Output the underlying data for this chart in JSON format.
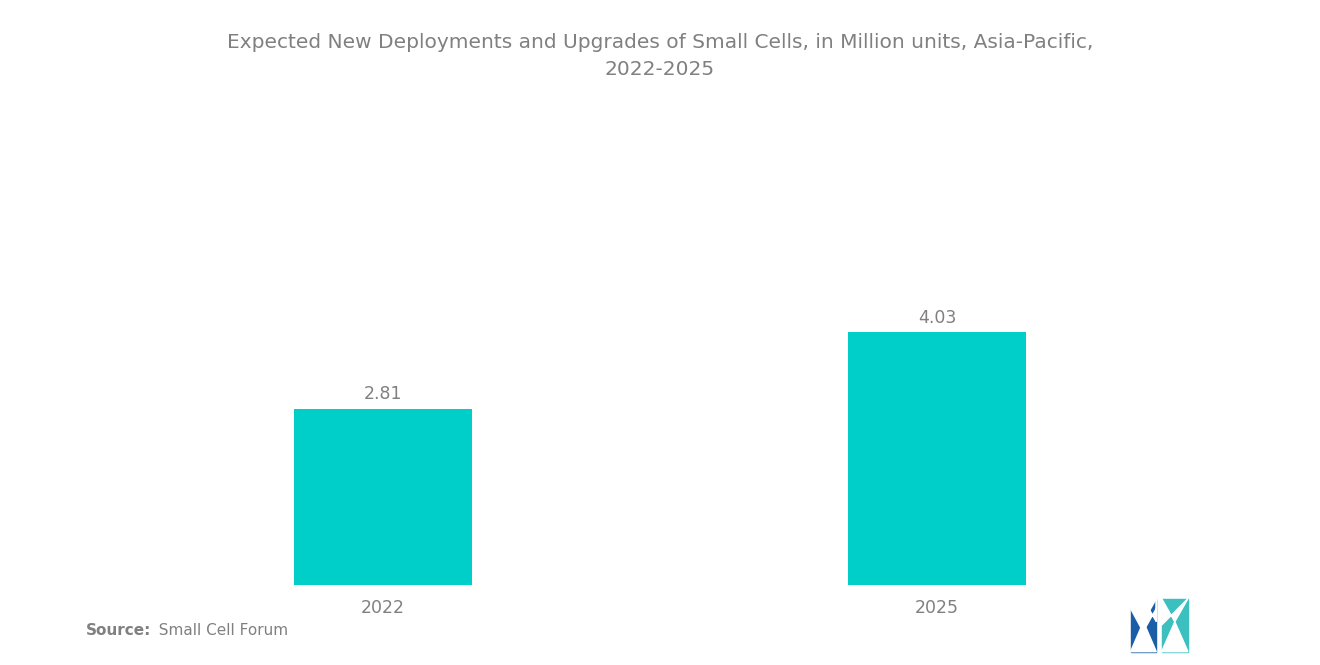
{
  "title": "Expected New Deployments and Upgrades of Small Cells, in Million units, Asia-Pacific,\n2022-2025",
  "categories": [
    "2022",
    "2025"
  ],
  "values": [
    2.81,
    4.03
  ],
  "bar_color": "#00CEC9",
  "bar_width": 0.32,
  "value_labels": [
    "2.81",
    "4.03"
  ],
  "source_bold": "Source:",
  "source_rest": "  Small Cell Forum",
  "title_fontsize": 14.5,
  "tick_fontsize": 12.5,
  "value_fontsize": 12.5,
  "source_fontsize": 11,
  "ylim": [
    0,
    5.5
  ],
  "background_color": "#ffffff",
  "text_color": "#808080",
  "x_positions": [
    1,
    2
  ],
  "xlim": [
    0.5,
    2.5
  ]
}
